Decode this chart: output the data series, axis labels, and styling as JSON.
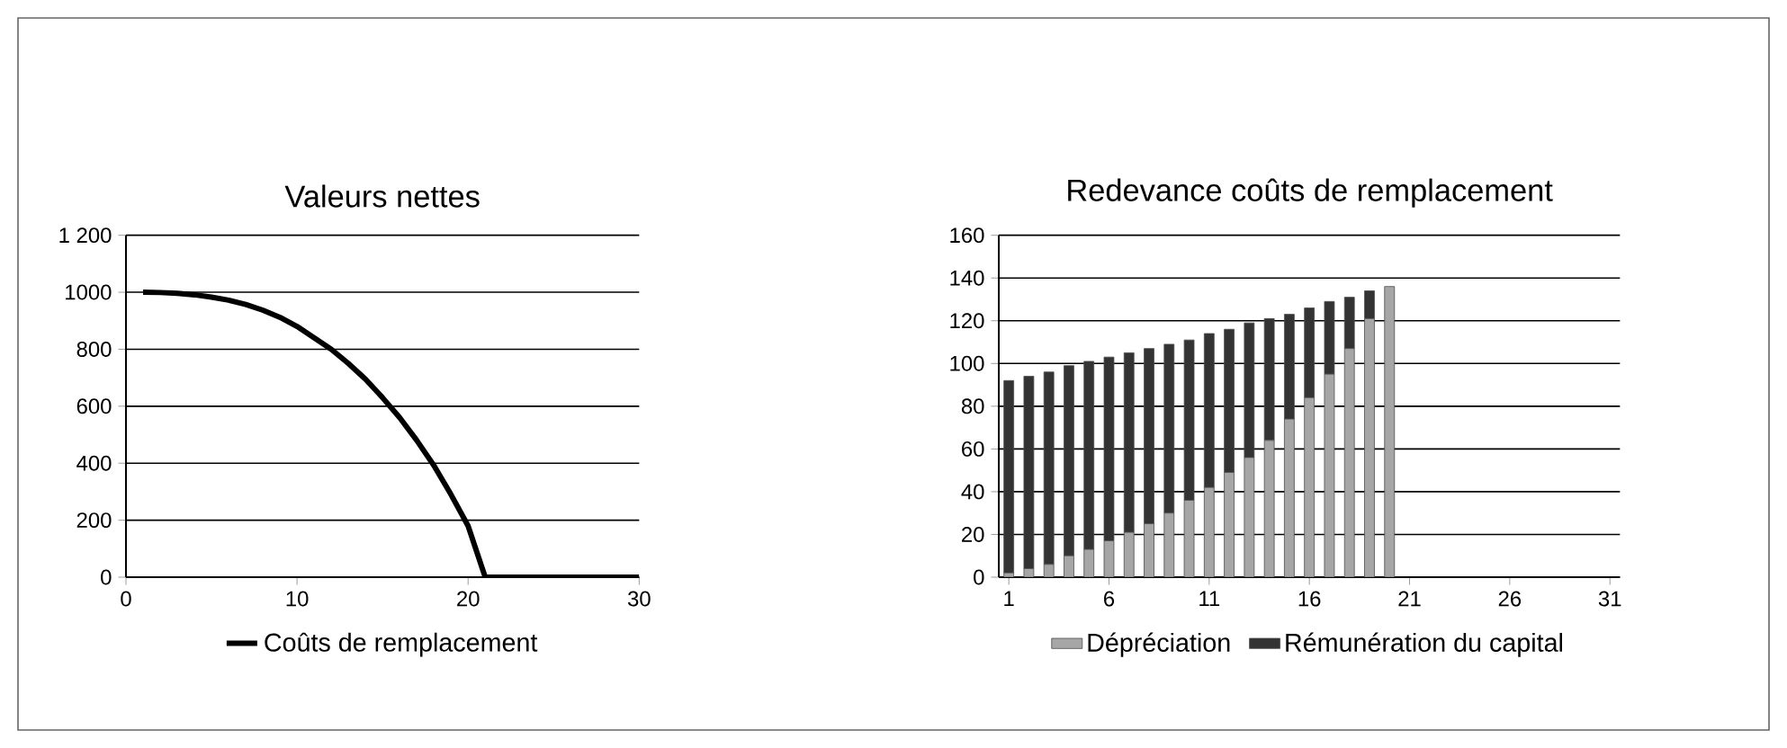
{
  "chart_data": [
    {
      "type": "line",
      "title": "Valeurs nettes",
      "x": [
        1,
        2,
        3,
        4,
        5,
        6,
        7,
        8,
        9,
        10,
        11,
        12,
        13,
        14,
        15,
        16,
        17,
        18,
        19,
        20,
        21,
        22,
        23,
        24,
        25,
        26,
        27,
        28,
        29,
        30
      ],
      "series": [
        {
          "name": "Coûts de remplacement",
          "color": "#000000",
          "values": [
            1000,
            999,
            996,
            991,
            983,
            972,
            957,
            937,
            912,
            880,
            840,
            800,
            750,
            695,
            630,
            560,
            480,
            392,
            290,
            180,
            0,
            0,
            0,
            0,
            0,
            0,
            0,
            0,
            0,
            0
          ]
        }
      ],
      "xlim": [
        0,
        30
      ],
      "xticks": [
        0,
        10,
        20,
        30
      ],
      "ylim": [
        0,
        1200
      ],
      "yticks": [
        0,
        200,
        400,
        600,
        800,
        1000,
        {
          "value": 1200,
          "label": "1 200"
        }
      ],
      "grid": "y",
      "legend": "bottom",
      "marker": "none",
      "line_style": "solid"
    },
    {
      "type": "bar",
      "title": "Redevance coûts de remplacement",
      "stacked": true,
      "x": [
        1,
        2,
        3,
        4,
        5,
        6,
        7,
        8,
        9,
        10,
        11,
        12,
        13,
        14,
        15,
        16,
        17,
        18,
        19,
        20
      ],
      "series": [
        {
          "name": "Dépréciation",
          "color": "#a6a6a6",
          "values": [
            2,
            4,
            6,
            10,
            13,
            17,
            21,
            25,
            30,
            36,
            42,
            49,
            56,
            64,
            74,
            84,
            95,
            107,
            121,
            136
          ]
        },
        {
          "name": "Rémunération du capital",
          "color": "#333333",
          "values": [
            90,
            90,
            90,
            89,
            88,
            86,
            84,
            82,
            79,
            75,
            72,
            67,
            63,
            57,
            49,
            42,
            34,
            24,
            13,
            0
          ]
        }
      ],
      "xlim": [
        0.5,
        31.5
      ],
      "xticks": [
        1,
        6,
        11,
        16,
        21,
        26,
        31
      ],
      "ylim": [
        0,
        160
      ],
      "yticks": [
        0,
        20,
        40,
        60,
        80,
        100,
        120,
        140,
        160
      ],
      "grid": "y",
      "legend": "bottom"
    }
  ]
}
